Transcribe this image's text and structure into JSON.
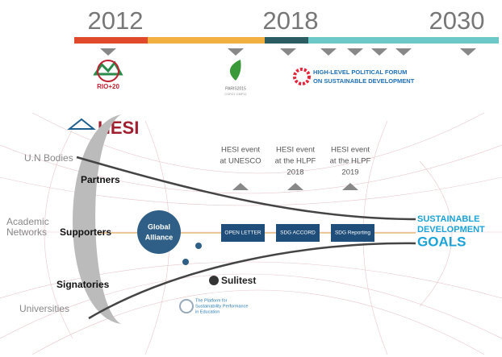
{
  "timeline": {
    "years": [
      "2012",
      "2018",
      "2030"
    ]
  },
  "logos": {
    "rio": "RIO+20",
    "paris": [
      "PARIS2015",
      "COP21·CMP11"
    ],
    "hlpf": [
      "HIGH-LEVEL POLITICAL FORUM",
      "ON SUSTAINABLE DEVELOPMENT"
    ],
    "hesi": "HESI",
    "sulitest": "Sulitest",
    "platform": [
      "The Platform for",
      "Sustainability Performance",
      "in Education"
    ],
    "sdg": [
      "SUSTAINABLE",
      "DEVELOPMENT",
      "GOALS"
    ]
  },
  "groups": {
    "un": "U.N Bodies",
    "academic": [
      "Academic",
      "Networks"
    ],
    "universities": "Universities"
  },
  "roles": {
    "partners": "Partners",
    "supporters": "Supporters",
    "signatories": "Signatories"
  },
  "alliance": [
    "Global",
    "Alliance"
  ],
  "events": [
    [
      "HESI event",
      "at UNESCO"
    ],
    [
      "HESI event",
      "at the HLPF",
      "2018"
    ],
    [
      "HESI event",
      "at the HLPF",
      "2019"
    ]
  ],
  "milestones": [
    "OPEN LETTER",
    "SDG ACCORD",
    "SDG Reporting"
  ]
}
